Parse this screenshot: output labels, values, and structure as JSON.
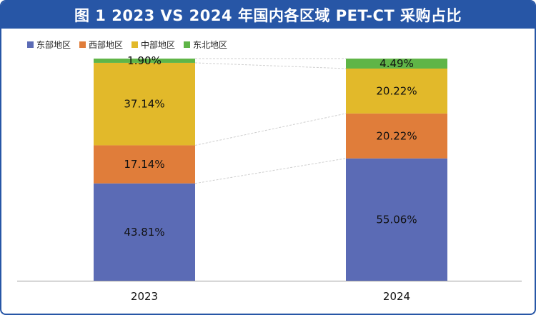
{
  "title": "图 1  2023 VS 2024 年国内各区域 PET-CT 采购占比",
  "chart_data": {
    "type": "bar",
    "stacked": true,
    "categories": [
      "2023",
      "2024"
    ],
    "series": [
      {
        "name": "东部地区",
        "color": "#5b6bb5",
        "values": [
          43.81,
          55.06
        ],
        "labels": [
          "43.81%",
          "55.06%"
        ]
      },
      {
        "name": "西部地区",
        "color": "#e07d3a",
        "values": [
          17.14,
          20.22
        ],
        "labels": [
          "17.14%",
          "20.22%"
        ]
      },
      {
        "name": "中部地区",
        "color": "#e2b92a",
        "values": [
          37.14,
          20.22
        ],
        "labels": [
          "37.14%",
          "20.22%"
        ]
      },
      {
        "name": "东北地区",
        "color": "#5fb547",
        "values": [
          1.9,
          4.49
        ],
        "labels": [
          "1.90%",
          "4.49%"
        ]
      }
    ],
    "ylim": [
      0,
      100
    ],
    "legend_position": "top-left",
    "connector_lines": true
  }
}
